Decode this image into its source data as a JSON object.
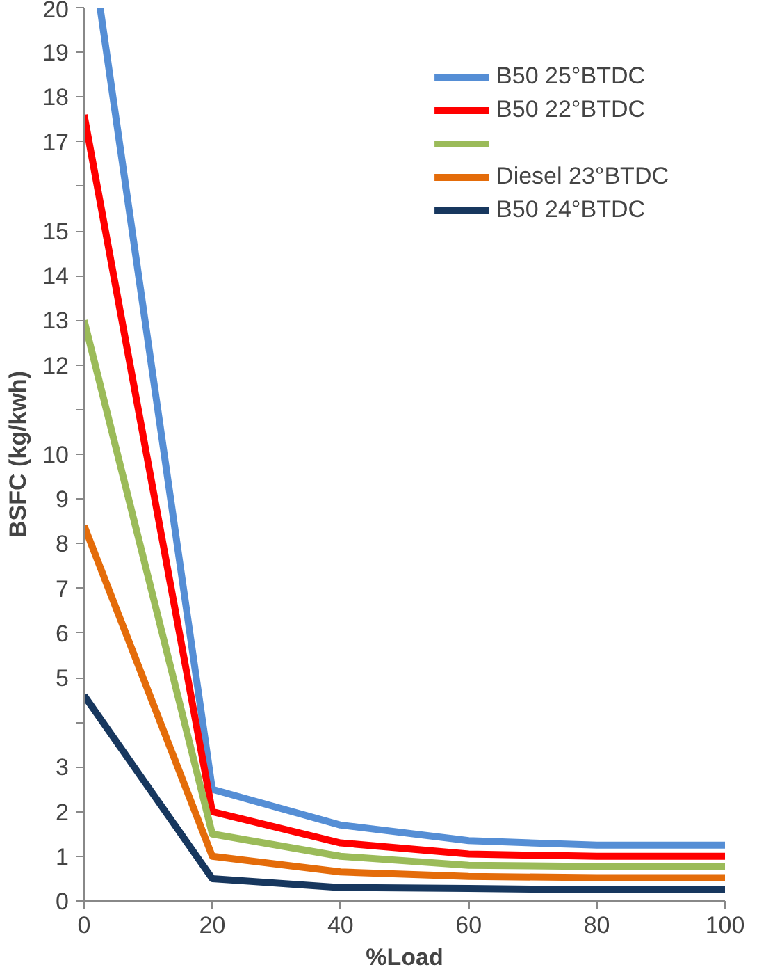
{
  "chart_data": {
    "type": "line",
    "xlabel": "%Load",
    "ylabel": "BSFC (kg/kwh)",
    "x": [
      0,
      20,
      40,
      60,
      80,
      100
    ],
    "xlim": [
      0,
      100
    ],
    "xticks": [
      0,
      20,
      40,
      60,
      80,
      100
    ],
    "ylim": [
      0,
      20
    ],
    "yticks": [
      0,
      1,
      2,
      3,
      {
        "value": 4,
        "label": null
      },
      5,
      6,
      7,
      8,
      9,
      10,
      {
        "value": 11,
        "label": null
      },
      12,
      13,
      14,
      15,
      {
        "value": 16,
        "label": null
      },
      17,
      18,
      19,
      20
    ],
    "grid": false,
    "legend": "top right",
    "marker": "none",
    "line_style": "solid",
    "series": [
      {
        "name": "B50 25°BTDC",
        "color": "#558ed5",
        "x": [
          2.5,
          20,
          40,
          60,
          80,
          100
        ],
        "values": [
          20,
          2.5,
          1.7,
          1.35,
          1.25,
          1.25
        ]
      },
      {
        "name": "B50 22°BTDC",
        "color": "#ff0000",
        "values": [
          17.6,
          2.0,
          1.3,
          1.05,
          1.0,
          1.0
        ]
      },
      {
        "color": "#9bbb59",
        "values": [
          13.0,
          1.5,
          1.0,
          0.8,
          0.77,
          0.77
        ]
      },
      {
        "name": "Diesel 23°BTDC",
        "color": "#e46c0a",
        "values": [
          8.4,
          1.0,
          0.65,
          0.55,
          0.52,
          0.52
        ]
      },
      {
        "name": "B50 24°BTDC",
        "color": "#17375e",
        "values": [
          4.6,
          0.5,
          0.3,
          0.28,
          0.25,
          0.25
        ]
      }
    ]
  }
}
